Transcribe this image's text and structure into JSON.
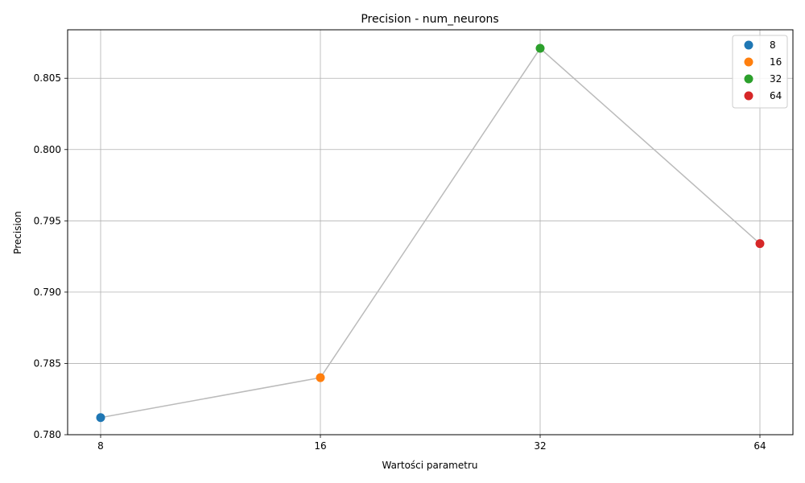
{
  "chart_data": {
    "type": "line",
    "title": "Precision - num_neurons",
    "xlabel": "Wartości parametru",
    "ylabel": "Precision",
    "categories": [
      "8",
      "16",
      "32",
      "64"
    ],
    "values": [
      0.7812,
      0.784,
      0.8071,
      0.7934
    ],
    "point_colors": [
      "#1f77b4",
      "#ff7f0e",
      "#2ca02c",
      "#d62728"
    ],
    "line_color": "#bbbbbb",
    "ylim": [
      0.78,
      0.8084
    ],
    "yticks": [
      0.78,
      0.785,
      0.79,
      0.795,
      0.8,
      0.805
    ],
    "ytick_labels": [
      "0.780",
      "0.785",
      "0.790",
      "0.795",
      "0.800",
      "0.805"
    ],
    "grid": true,
    "legend": {
      "placement": "top-right",
      "entries": [
        "8",
        "16",
        "32",
        "64"
      ]
    }
  }
}
